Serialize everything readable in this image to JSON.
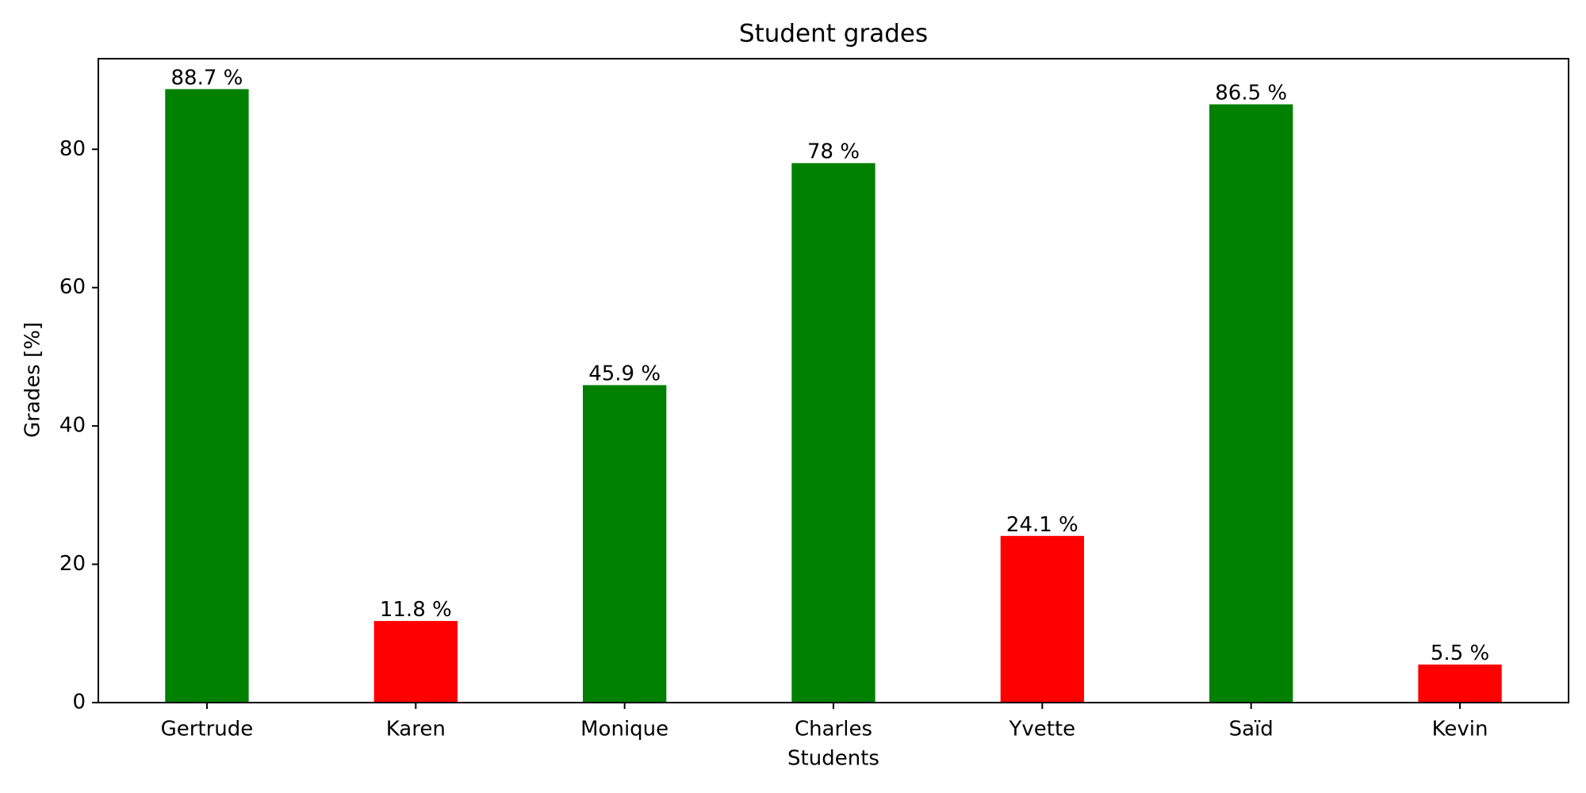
{
  "chart_data": {
    "type": "bar",
    "title": "Student grades",
    "xlabel": "Students",
    "ylabel": "Grades [%]",
    "categories": [
      "Gertrude",
      "Karen",
      "Monique",
      "Charles",
      "Yvette",
      "Saïd",
      "Kevin"
    ],
    "values": [
      88.7,
      11.8,
      45.9,
      78,
      24.1,
      86.5,
      5.5
    ],
    "data_labels": [
      "88.7 %",
      "11.8 %",
      "45.9 %",
      "78 %",
      "24.1 %",
      "86.5 %",
      "5.5 %"
    ],
    "bar_colors": [
      "#008000",
      "#ff0000",
      "#008000",
      "#008000",
      "#ff0000",
      "#008000",
      "#ff0000"
    ],
    "colors": {
      "pass": "#008000",
      "fail": "#ff0000",
      "axis": "#000000",
      "background": "#ffffff"
    },
    "ylim": [
      0,
      93.1
    ],
    "yticks": [
      0,
      20,
      40,
      60,
      80
    ],
    "grid": false,
    "legend": "none"
  }
}
